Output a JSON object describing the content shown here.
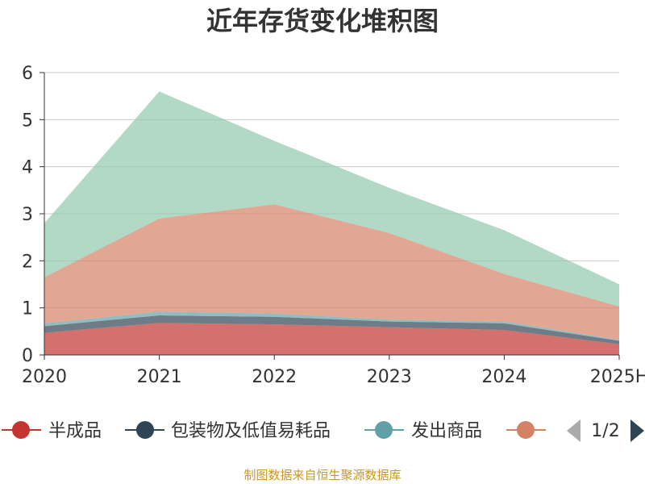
{
  "chart_data": {
    "type": "area",
    "title": "近年存货变化堆积图",
    "stacked": true,
    "categories": [
      "2020",
      "2021",
      "2022",
      "2023",
      "2024",
      "2025H"
    ],
    "ylim": [
      0,
      6
    ],
    "yticks": [
      0,
      1,
      2,
      3,
      4,
      5,
      6
    ],
    "grid": true,
    "legend_position": "bottom",
    "series": [
      {
        "name": "半成品",
        "color": "#c23531",
        "values": [
          0.47,
          0.68,
          0.65,
          0.59,
          0.53,
          0.23
        ]
      },
      {
        "name": "包装物及低值易耗品",
        "color": "#2f4554",
        "values": [
          0.14,
          0.16,
          0.16,
          0.12,
          0.14,
          0.07
        ]
      },
      {
        "name": "发出商品",
        "color": "#61a0a8",
        "values": [
          0.06,
          0.08,
          0.07,
          0.04,
          0.04,
          0.02
        ]
      },
      {
        "name": "",
        "color": "#d48265",
        "values": [
          0.98,
          1.98,
          2.32,
          1.84,
          1.01,
          0.71
        ]
      },
      {
        "name": "",
        "color": "#91c7ae",
        "values": [
          1.15,
          2.7,
          1.35,
          0.96,
          0.93,
          0.47
        ]
      }
    ],
    "legend_pager": "1/2"
  },
  "source_note": "制图数据来自恒生聚源数据库"
}
